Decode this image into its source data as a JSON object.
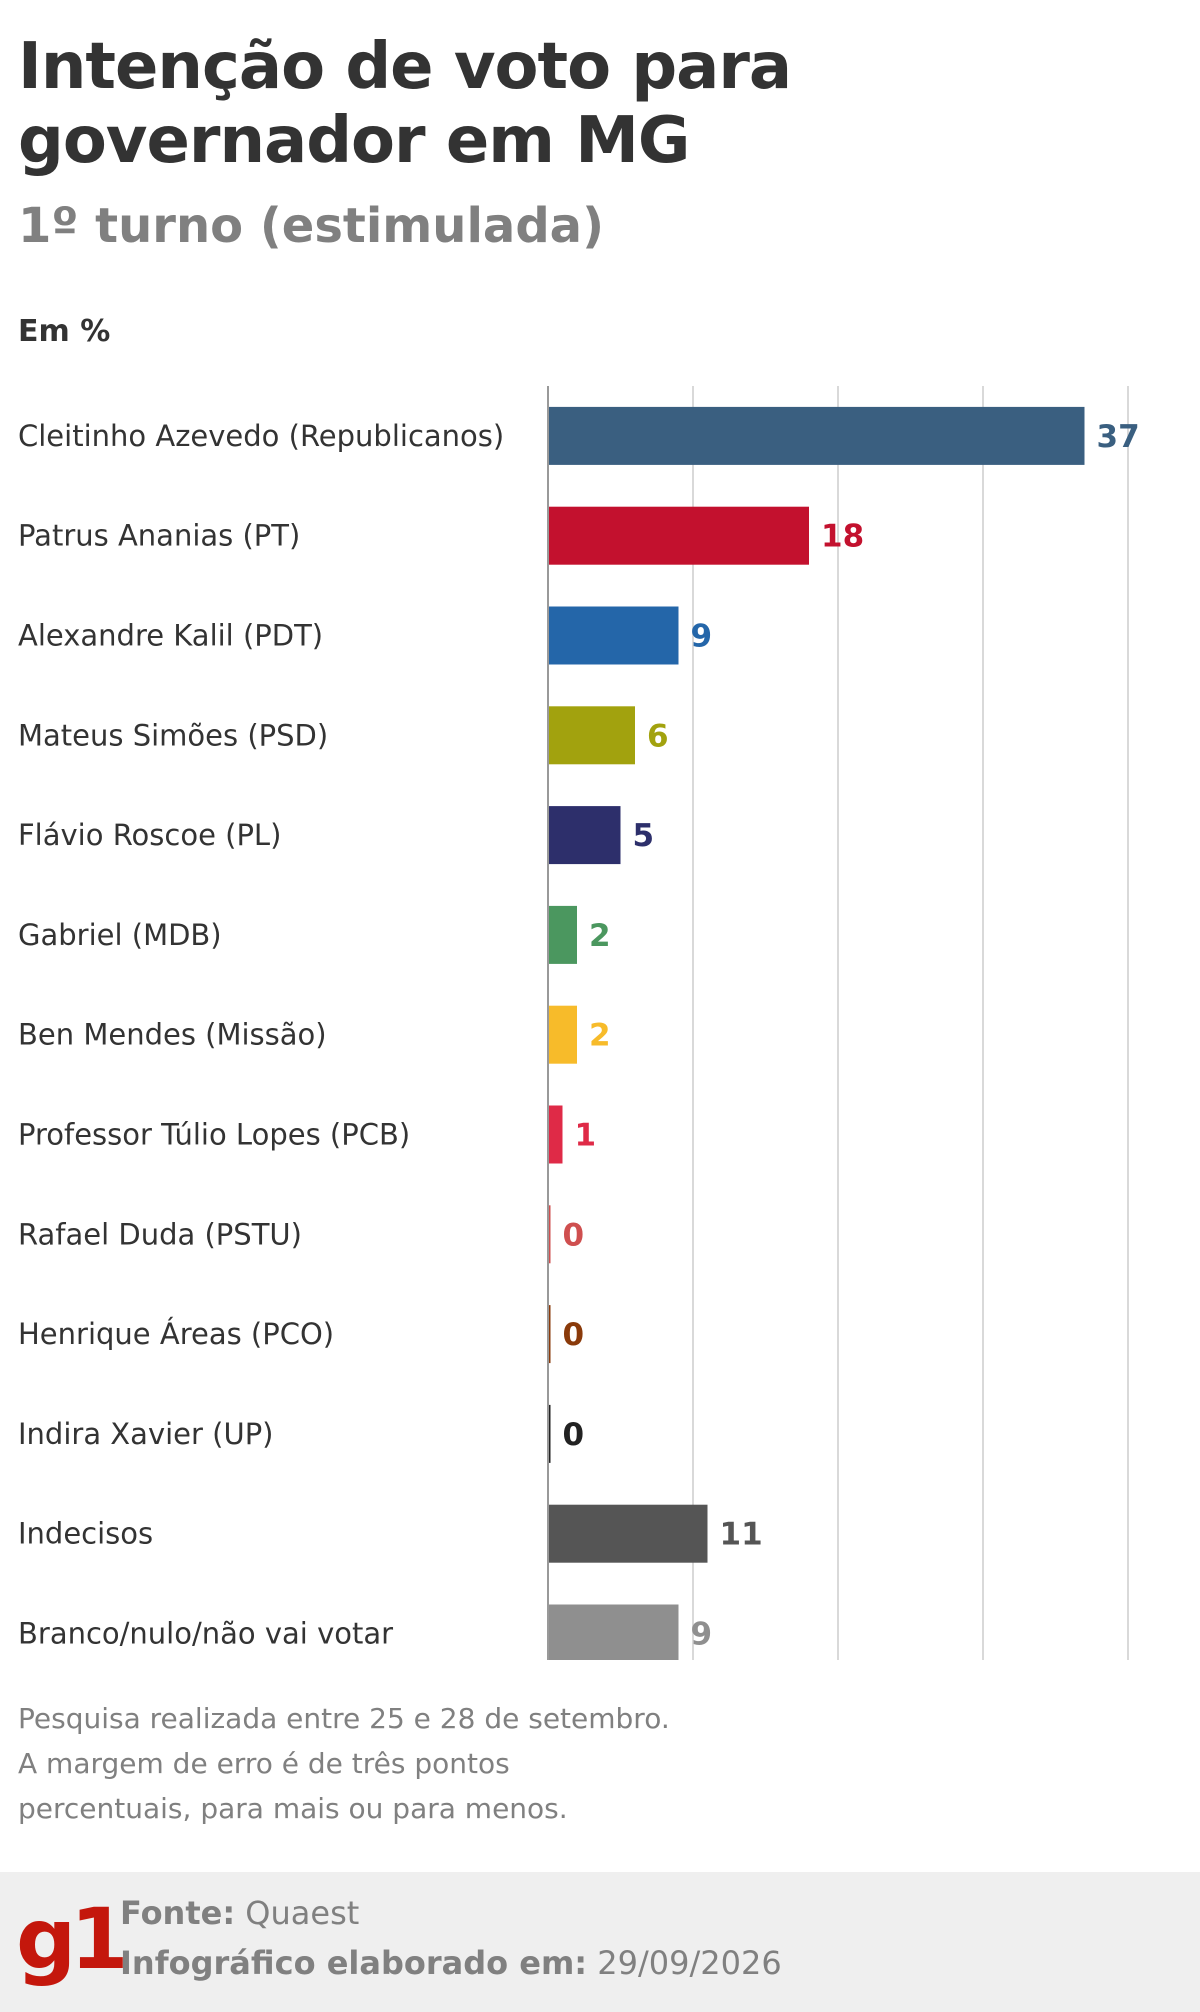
{
  "header": {
    "title": "Intenção de voto para governador em MG",
    "subtitle": "1º turno (estimulada)",
    "unit": "Em %"
  },
  "chart_data": {
    "type": "bar",
    "orientation": "horizontal",
    "categories": [
      "Cleitinho Azevedo (Republicanos)",
      "Patrus Ananias (PT)",
      "Alexandre Kalil (PDT)",
      "Mateus Simões (PSD)",
      "Flávio Roscoe (PL)",
      "Gabriel (MDB)",
      "Ben Mendes (Missão)",
      "Professor Túlio Lopes (PCB)",
      "Rafael Duda (PSTU)",
      "Henrique Áreas (PCO)",
      "Indira Xavier (UP)",
      "Indecisos",
      "Branco/nulo/não vai votar"
    ],
    "values": [
      37,
      18,
      9,
      6,
      5,
      2,
      2,
      1,
      0,
      0,
      0,
      11,
      9
    ],
    "colors": [
      "#3a5f80",
      "#c3112e",
      "#2466a9",
      "#a2a20e",
      "#2d2f6b",
      "#4b975f",
      "#f7bb2a",
      "#df2a47",
      "#cf4f4f",
      "#8a3a0a",
      "#222222",
      "#555555",
      "#8f8f8f"
    ],
    "xlim": [
      0,
      40
    ],
    "grid": true,
    "gridlines": [
      10,
      20,
      30,
      40
    ]
  },
  "notes": [
    "Pesquisa realizada entre 25 e 28 de setembro.",
    "A margem de erro é de três pontos",
    "percentuais, para mais ou para menos."
  ],
  "footer": {
    "logo": "g1",
    "source_label": "Fonte:",
    "source_value": "Quaest",
    "date_label": "Infográfico elaborado em:",
    "date_value": "29/09/2026",
    "brand_color": "#c4170c"
  }
}
